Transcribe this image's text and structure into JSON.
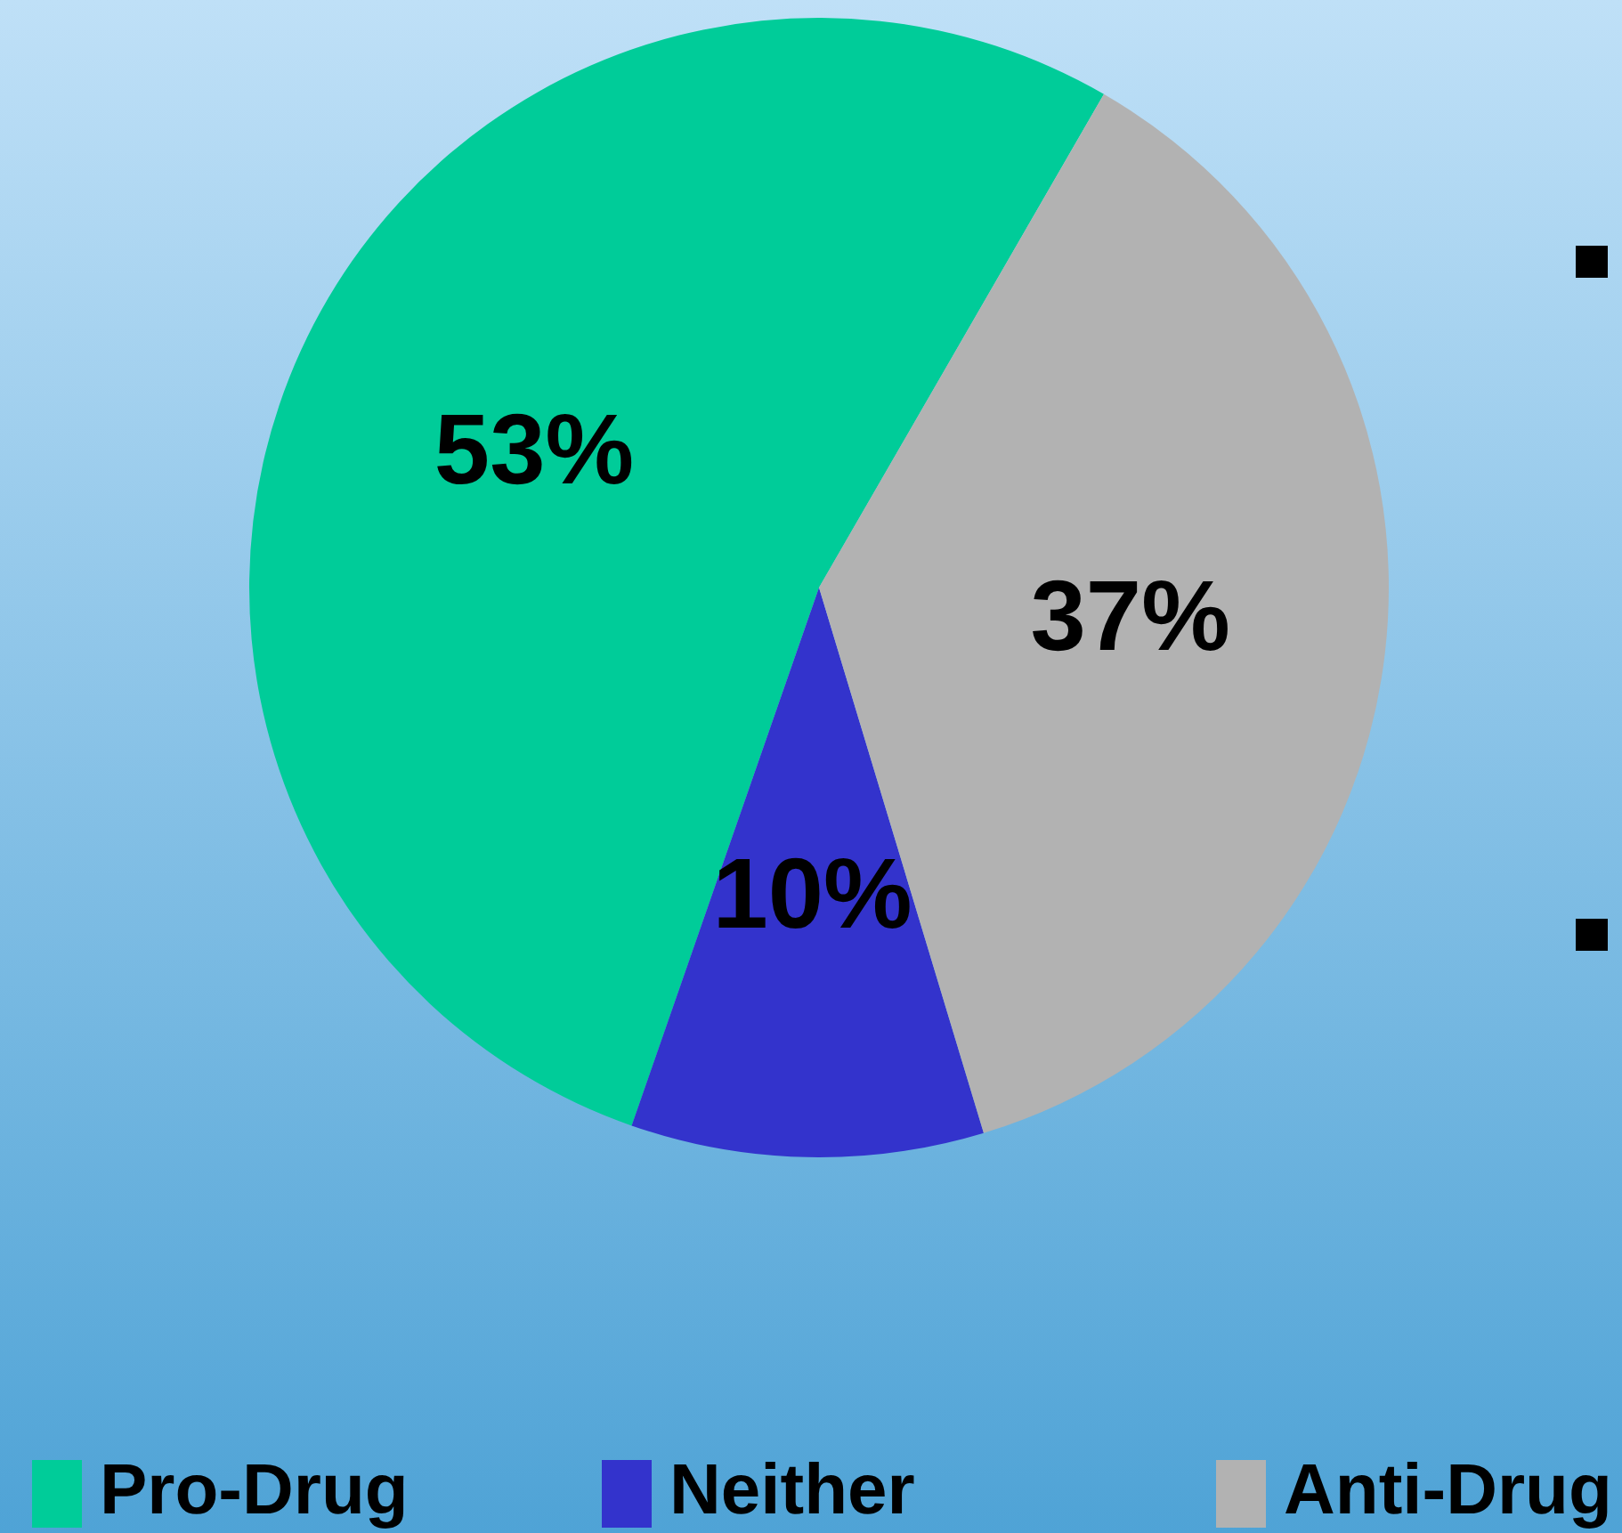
{
  "chart_data": {
    "type": "pie",
    "categories": [
      "Pro-Drug",
      "Neither",
      "Anti-Drug"
    ],
    "values": [
      53,
      10,
      37
    ],
    "colors": [
      "#00cc99",
      "#3333cc",
      "#b2b2b2"
    ],
    "value_labels": [
      "53%",
      "10%",
      "37%"
    ],
    "legend": "bottom"
  }
}
